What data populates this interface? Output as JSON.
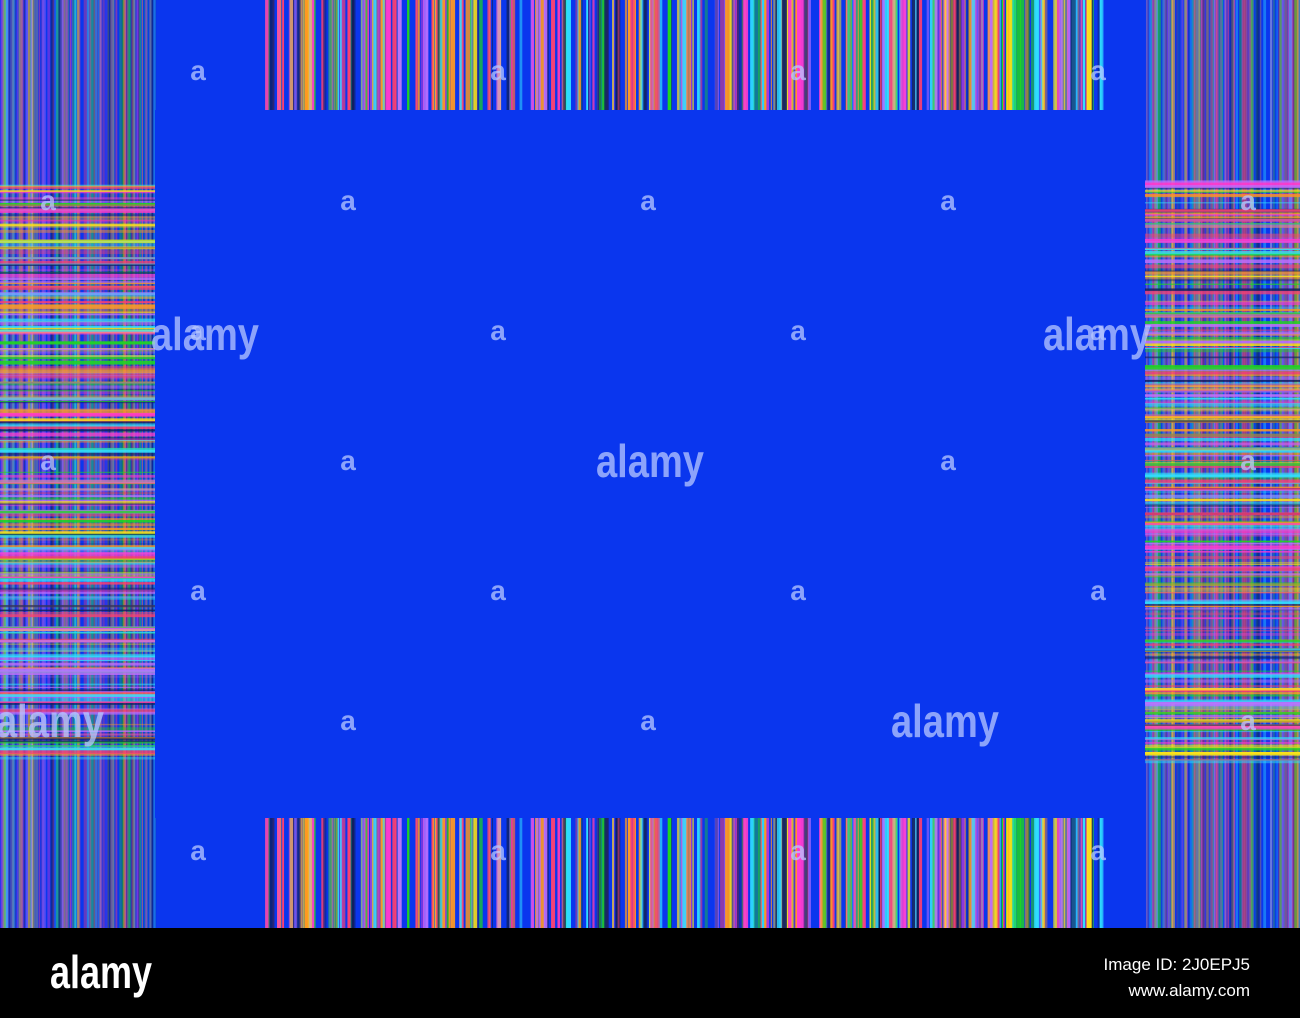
{
  "watermark": {
    "logo": "alamy",
    "mark": "a"
  },
  "footer": {
    "logo": "alamy",
    "image_id": "Image ID: 2J0EPJ5",
    "url": "www.alamy.com"
  }
}
